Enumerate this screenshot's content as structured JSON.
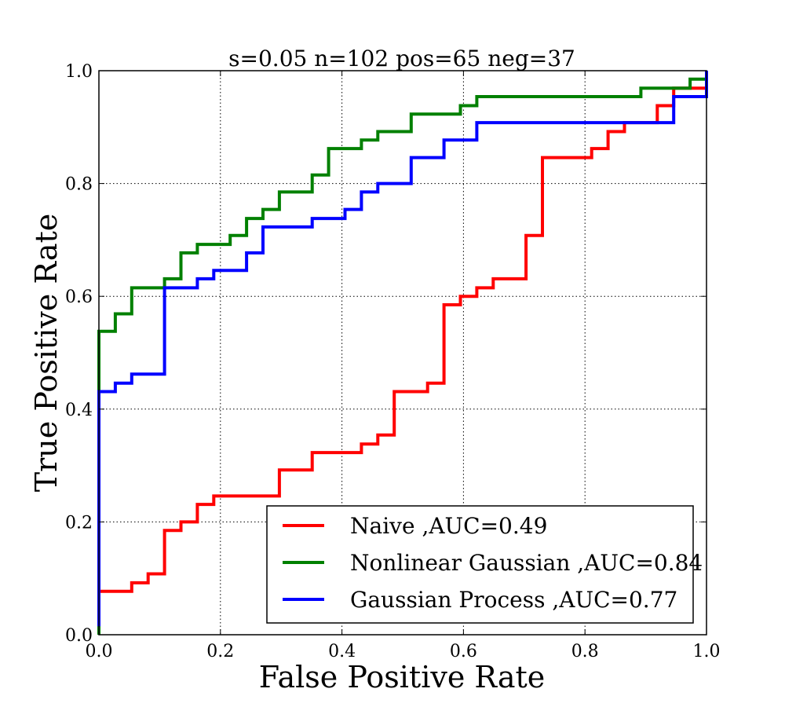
{
  "chart_data": {
    "type": "line",
    "title": "s=0.05 n=102 pos=65 neg=37",
    "xlabel": "False Positive Rate",
    "ylabel": "True Positive Rate",
    "xlim": [
      0.0,
      1.0
    ],
    "ylim": [
      0.0,
      1.0
    ],
    "xticks": [
      "0.0",
      "0.2",
      "0.4",
      "0.6",
      "0.8",
      "1.0"
    ],
    "yticks": [
      "0.0",
      "0.2",
      "0.4",
      "0.6",
      "0.8",
      "1.0"
    ],
    "grid": true,
    "legend_position": "lower-right",
    "series": [
      {
        "name": "Naive ,AUC=0.49",
        "color": "#ff0000",
        "x": [
          0.0,
          0.0,
          0.054,
          0.054,
          0.081,
          0.081,
          0.108,
          0.108,
          0.135,
          0.135,
          0.162,
          0.162,
          0.189,
          0.189,
          0.297,
          0.297,
          0.351,
          0.351,
          0.432,
          0.432,
          0.459,
          0.459,
          0.486,
          0.486,
          0.541,
          0.541,
          0.568,
          0.568,
          0.595,
          0.595,
          0.622,
          0.622,
          0.649,
          0.649,
          0.703,
          0.703,
          0.73,
          0.73,
          0.811,
          0.811,
          0.838,
          0.838,
          0.865,
          0.865,
          0.919,
          0.919,
          0.946,
          0.946,
          1.0,
          1.0
        ],
        "y": [
          0.0,
          0.077,
          0.077,
          0.092,
          0.092,
          0.108,
          0.108,
          0.185,
          0.185,
          0.2,
          0.2,
          0.231,
          0.231,
          0.246,
          0.246,
          0.292,
          0.292,
          0.323,
          0.323,
          0.338,
          0.338,
          0.354,
          0.354,
          0.431,
          0.431,
          0.446,
          0.446,
          0.585,
          0.585,
          0.6,
          0.6,
          0.615,
          0.615,
          0.631,
          0.631,
          0.708,
          0.708,
          0.846,
          0.846,
          0.862,
          0.862,
          0.892,
          0.892,
          0.908,
          0.908,
          0.938,
          0.938,
          0.969,
          0.969,
          1.0
        ]
      },
      {
        "name": "Nonlinear Gaussian ,AUC=0.84",
        "color": "#008000",
        "x": [
          0.0,
          0.0,
          0.027,
          0.027,
          0.054,
          0.054,
          0.108,
          0.108,
          0.135,
          0.135,
          0.162,
          0.162,
          0.216,
          0.216,
          0.243,
          0.243,
          0.27,
          0.27,
          0.297,
          0.297,
          0.351,
          0.351,
          0.378,
          0.378,
          0.432,
          0.432,
          0.459,
          0.459,
          0.514,
          0.514,
          0.595,
          0.595,
          0.622,
          0.622,
          0.892,
          0.892,
          0.973,
          0.973,
          1.0,
          1.0
        ],
        "y": [
          0.0,
          0.538,
          0.538,
          0.569,
          0.569,
          0.615,
          0.615,
          0.631,
          0.631,
          0.677,
          0.677,
          0.692,
          0.692,
          0.708,
          0.708,
          0.738,
          0.738,
          0.754,
          0.754,
          0.785,
          0.785,
          0.815,
          0.815,
          0.862,
          0.862,
          0.877,
          0.877,
          0.892,
          0.892,
          0.923,
          0.923,
          0.938,
          0.938,
          0.954,
          0.954,
          0.969,
          0.969,
          0.985,
          0.985,
          1.0
        ]
      },
      {
        "name": "Gaussian Process ,AUC=0.77",
        "color": "#0000ff",
        "x": [
          0.0,
          0.0,
          0.027,
          0.027,
          0.054,
          0.054,
          0.108,
          0.108,
          0.162,
          0.162,
          0.189,
          0.189,
          0.243,
          0.243,
          0.27,
          0.27,
          0.351,
          0.351,
          0.405,
          0.405,
          0.432,
          0.432,
          0.459,
          0.459,
          0.514,
          0.514,
          0.568,
          0.568,
          0.622,
          0.622,
          0.946,
          0.946,
          1.0,
          1.0
        ],
        "y": [
          0.015,
          0.431,
          0.431,
          0.446,
          0.446,
          0.462,
          0.462,
          0.615,
          0.615,
          0.631,
          0.631,
          0.646,
          0.646,
          0.677,
          0.677,
          0.723,
          0.723,
          0.738,
          0.738,
          0.754,
          0.754,
          0.785,
          0.785,
          0.8,
          0.8,
          0.846,
          0.846,
          0.877,
          0.877,
          0.908,
          0.908,
          0.954,
          0.954,
          1.0
        ]
      }
    ]
  }
}
